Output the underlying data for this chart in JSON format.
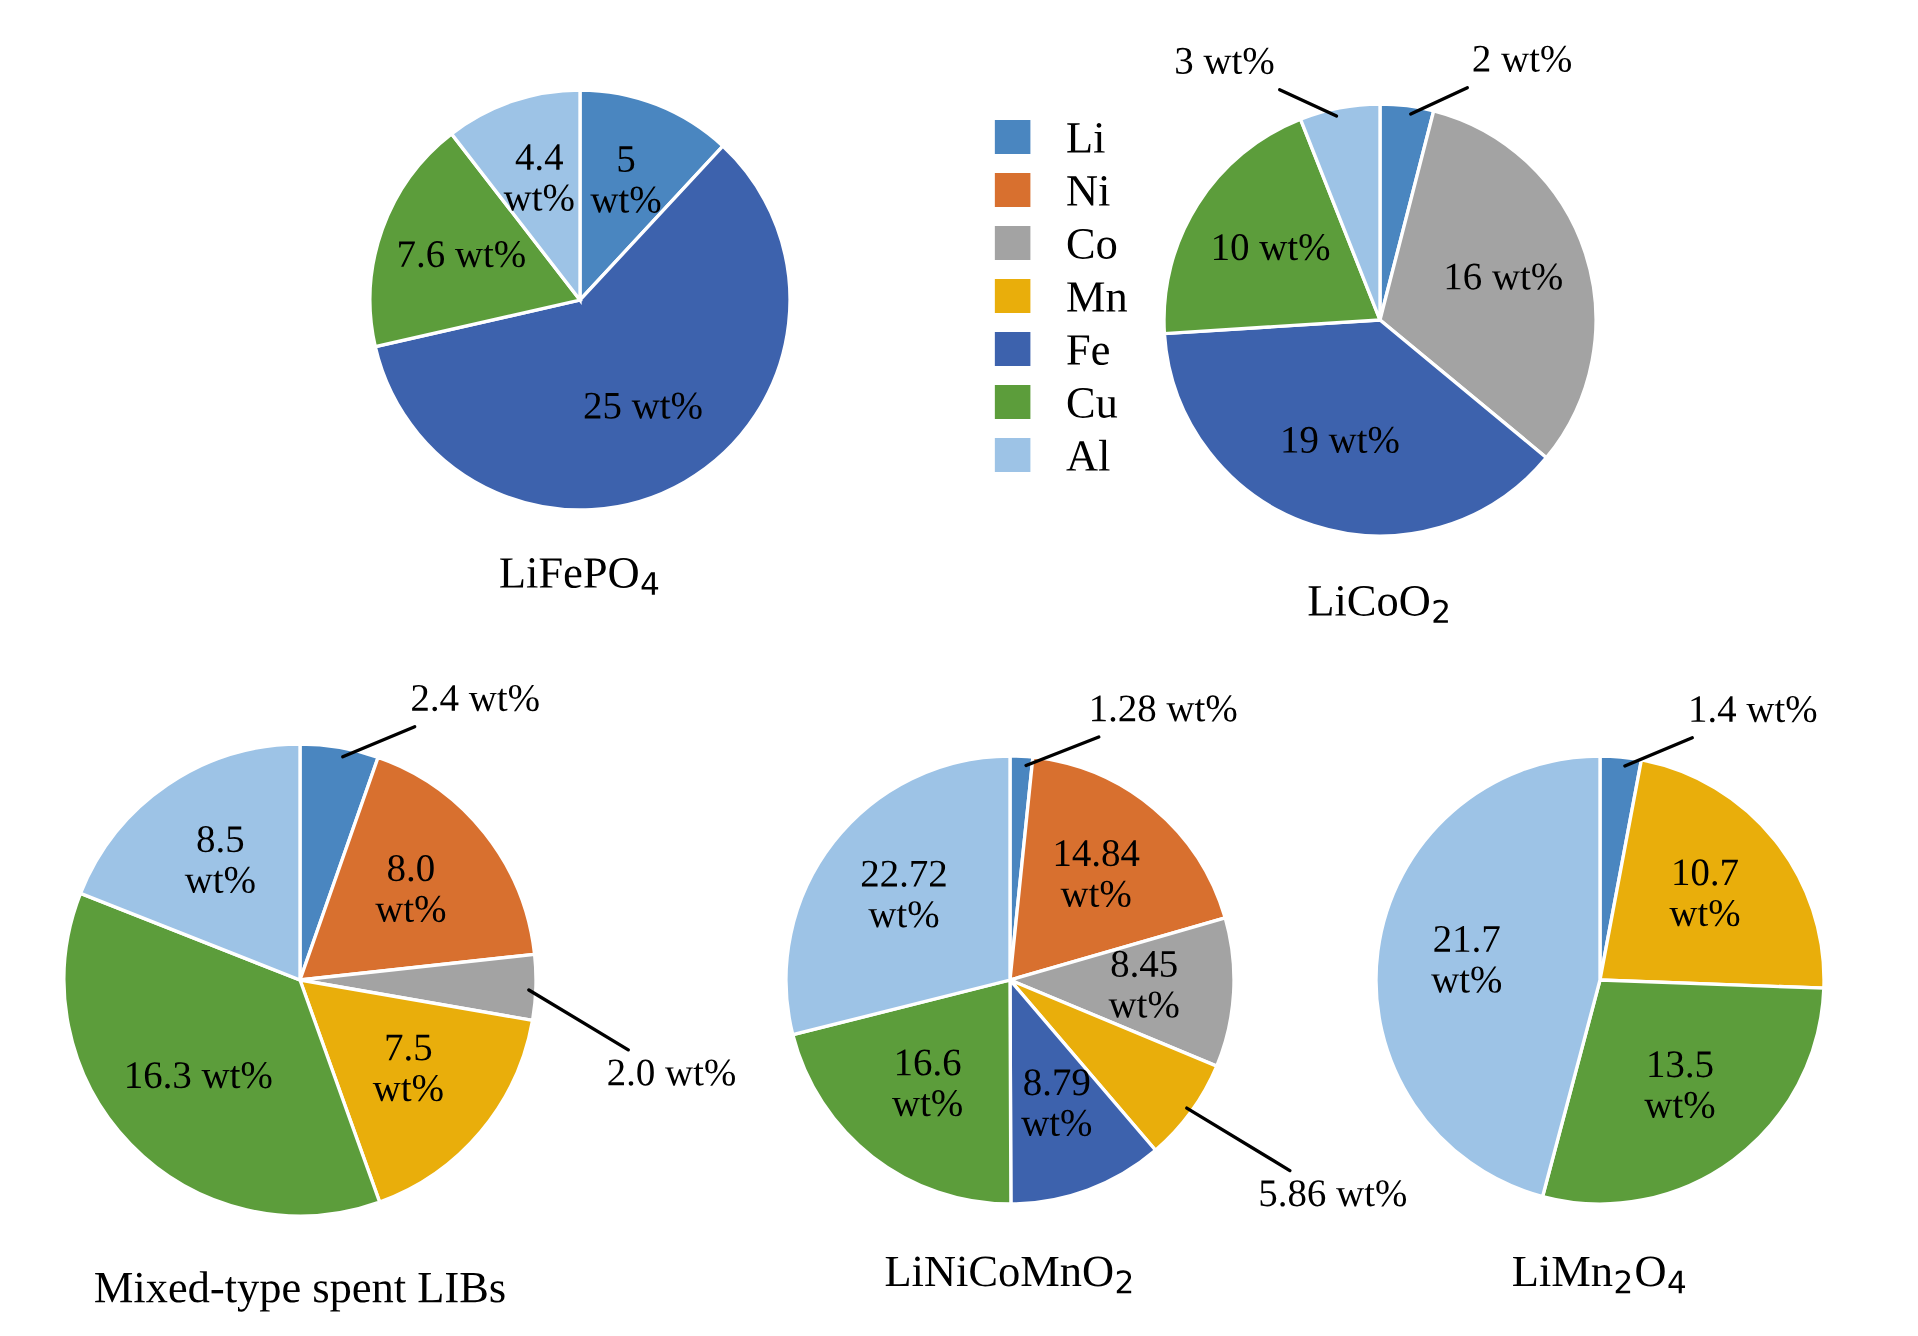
{
  "chart_data": [
    {
      "type": "pie",
      "title": "LiFePO$_{4}$",
      "legend": "right",
      "categories": [
        "Li",
        "Ni",
        "Co",
        "Mn",
        "Fe",
        "Cu",
        "Al"
      ],
      "colors": [
        "#4a86c0",
        "#d8702f",
        "#a3a3a3",
        "#e9ae0b",
        "#3d62ad",
        "#5c9d3b",
        "#9dc3e6"
      ],
      "values": [
        5,
        null,
        null,
        null,
        25,
        7.6,
        4.4
      ],
      "value_labels": [
        "5\nwt%",
        null,
        null,
        null,
        "25 wt%",
        "7.6 wt%",
        "4.4\nwt%"
      ]
    },
    {
      "type": "pie",
      "title": "LiCoO$_{2}$",
      "colors": [
        "#4a86c0",
        "#a3a3a3",
        "#3d62ad",
        "#5c9d3b",
        "#9dc3e6"
      ],
      "values": [
        2,
        16,
        19,
        10,
        3
      ],
      "value_labels": [
        "2 wt%",
        "16 wt%",
        "19 wt%",
        "10 wt%",
        "3 wt%"
      ]
    },
    {
      "type": "pie",
      "title": "Mixed-type spent LIBs",
      "colors": [
        "#4a86c0",
        "#d8702f",
        "#a3a3a3",
        "#e9ae0b",
        "#5c9d3b",
        "#9dc3e6"
      ],
      "values": [
        2.4,
        8.0,
        2.0,
        7.5,
        16.3,
        8.5
      ],
      "value_labels": [
        "2.4 wt%",
        "8.0\nwt%",
        "2.0 wt%",
        "7.5\nwt%",
        "16.3 wt%",
        "8.5\nwt%"
      ]
    },
    {
      "type": "pie",
      "title": "LiNiCoMnO$_{2}$",
      "colors": [
        "#4a86c0",
        "#d8702f",
        "#a3a3a3",
        "#e9ae0b",
        "#3d62ad",
        "#5c9d3b",
        "#9dc3e6"
      ],
      "values": [
        1.28,
        14.84,
        8.45,
        5.86,
        8.79,
        16.6,
        22.72
      ],
      "value_labels": [
        "1.28 wt%",
        "14.84\nwt%",
        "8.45\nwt%",
        "5.86 wt%",
        "8.79\nwt%",
        "16.6\nwt%",
        "22.72\nwt%"
      ]
    },
    {
      "type": "pie",
      "title": "LiMn$_{2}$O$_{4}$",
      "colors": [
        "#4a86c0",
        "#e9ae0b",
        "#5c9d3b",
        "#9dc3e6"
      ],
      "values": [
        1.4,
        10.7,
        13.5,
        21.7
      ],
      "value_labels": [
        "1.4 wt%",
        "10.7\nwt%",
        "13.5\nwt%",
        "21.7\nwt%"
      ]
    }
  ]
}
